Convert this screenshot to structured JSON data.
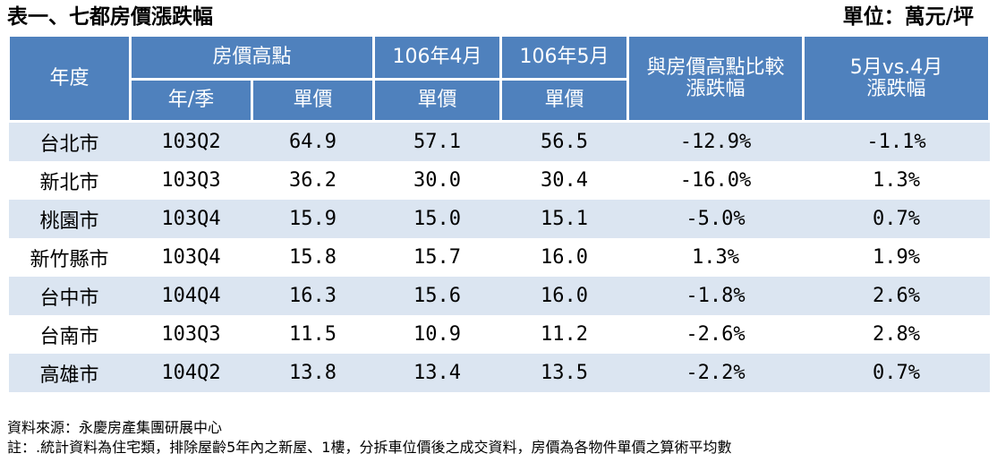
{
  "title": "表一、七都房價漲跌幅",
  "unit": "單位：萬元/坪",
  "header": {
    "year": "年度",
    "peak": "房價高點",
    "apr": "106年4月",
    "may": "106年5月",
    "cmp_peak": "與房價高點比較\n漲跌幅",
    "cmp_month": "5月vs.4月\n漲跌幅",
    "peak_quarter": "年/季",
    "peak_price": "單價",
    "apr_price": "單價",
    "may_price": "單價"
  },
  "rows": [
    {
      "city": "台北市",
      "quarter": "103Q2",
      "peak": "64.9",
      "apr": "57.1",
      "may": "56.5",
      "vs_peak": "-12.9%",
      "vs_month": "-1.1%"
    },
    {
      "city": "新北市",
      "quarter": "103Q3",
      "peak": "36.2",
      "apr": "30.0",
      "may": "30.4",
      "vs_peak": "-16.0%",
      "vs_month": "1.3%"
    },
    {
      "city": "桃園市",
      "quarter": "103Q4",
      "peak": "15.9",
      "apr": "15.0",
      "may": "15.1",
      "vs_peak": "-5.0%",
      "vs_month": "0.7%"
    },
    {
      "city": "新竹縣市",
      "quarter": "103Q4",
      "peak": "15.8",
      "apr": "15.7",
      "may": "16.0",
      "vs_peak": "1.3%",
      "vs_month": "1.9%"
    },
    {
      "city": "台中市",
      "quarter": "104Q4",
      "peak": "16.3",
      "apr": "15.6",
      "may": "16.0",
      "vs_peak": "-1.8%",
      "vs_month": "2.6%"
    },
    {
      "city": "台南市",
      "quarter": "103Q3",
      "peak": "11.5",
      "apr": "10.9",
      "may": "11.2",
      "vs_peak": "-2.6%",
      "vs_month": "2.8%"
    },
    {
      "city": "高雄市",
      "quarter": "104Q2",
      "peak": "13.8",
      "apr": "13.4",
      "may": "13.5",
      "vs_peak": "-2.2%",
      "vs_month": "0.7%"
    }
  ],
  "source": "資料來源：永慶房產集團研展中心",
  "note": "註：.統計資料為住宅類，排除屋齡5年內之新屋、1樓，分拆車位價後之成交資料，房價為各物件單價之算術平均數",
  "colors": {
    "header_bg": "#4f81bd",
    "header_text": "#ffffff",
    "band_row": "#dbe5f1"
  }
}
